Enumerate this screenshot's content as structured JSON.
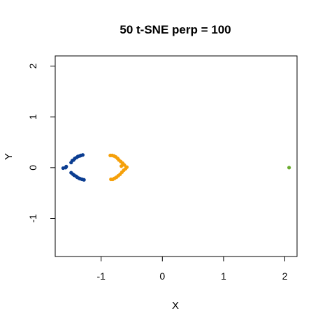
{
  "chart_data": {
    "type": "scatter",
    "title": "50 t-SNE perp = 100",
    "xlabel": "X",
    "ylabel": "Y",
    "xlim": [
      -1.75,
      2.2
    ],
    "ylim": [
      -1.75,
      2.2
    ],
    "xticks": [
      -1,
      0,
      1,
      2
    ],
    "yticks": [
      -1,
      0,
      1,
      2
    ],
    "grid": false,
    "series": [
      {
        "color": "#0b3d91",
        "points": [
          [
            -1.62,
            -0.01
          ],
          [
            -1.58,
            0.0
          ],
          [
            -1.57,
            0.02
          ],
          [
            -1.49,
            0.1
          ],
          [
            -1.47,
            0.14
          ],
          [
            -1.45,
            0.15
          ],
          [
            -1.43,
            0.18
          ],
          [
            -1.4,
            0.2
          ],
          [
            -1.38,
            0.22
          ],
          [
            -1.35,
            0.23
          ],
          [
            -1.33,
            0.24
          ],
          [
            -1.3,
            0.25
          ],
          [
            -1.49,
            -0.1
          ],
          [
            -1.46,
            -0.13
          ],
          [
            -1.44,
            -0.15
          ],
          [
            -1.41,
            -0.17
          ],
          [
            -1.39,
            -0.19
          ],
          [
            -1.36,
            -0.21
          ],
          [
            -1.34,
            -0.22
          ],
          [
            -1.31,
            -0.23
          ],
          [
            -1.28,
            -0.24
          ]
        ]
      },
      {
        "color": "#f5a00a",
        "points": [
          [
            -0.85,
            0.24
          ],
          [
            -0.82,
            0.24
          ],
          [
            -0.79,
            0.23
          ],
          [
            -0.76,
            0.21
          ],
          [
            -0.73,
            0.18
          ],
          [
            -0.71,
            0.15
          ],
          [
            -0.68,
            0.12
          ],
          [
            -0.65,
            0.09
          ],
          [
            -0.62,
            0.05
          ],
          [
            -0.58,
            0.01
          ],
          [
            -0.6,
            -0.02
          ],
          [
            -0.63,
            -0.05
          ],
          [
            -0.66,
            -0.09
          ],
          [
            -0.69,
            -0.13
          ],
          [
            -0.72,
            -0.16
          ],
          [
            -0.75,
            -0.19
          ],
          [
            -0.78,
            -0.21
          ],
          [
            -0.81,
            -0.23
          ],
          [
            -0.84,
            -0.23
          ],
          [
            -0.67,
            0.03
          ],
          [
            -0.64,
            0.07
          ]
        ]
      },
      {
        "color": "#6aab2e",
        "points": [
          [
            2.07,
            0.0
          ]
        ]
      }
    ]
  }
}
